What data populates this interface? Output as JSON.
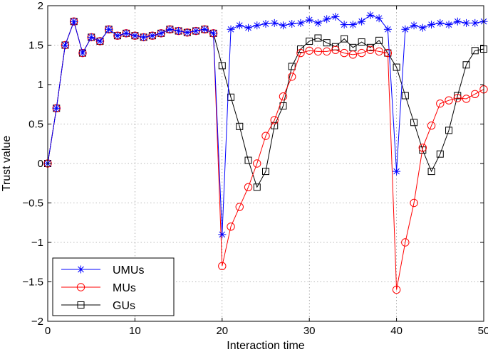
{
  "chart_data": {
    "type": "line",
    "title": "",
    "xlabel": "Interaction time",
    "ylabel": "Trust value",
    "xlim": [
      0,
      50
    ],
    "ylim": [
      -2,
      2
    ],
    "xticks": [
      0,
      10,
      20,
      30,
      40,
      50
    ],
    "yticks": [
      -2,
      -1.5,
      -1,
      -0.5,
      0,
      0.5,
      1,
      1.5,
      2
    ],
    "xtick_labels": [
      "0",
      "10",
      "20",
      "30",
      "40",
      "50"
    ],
    "ytick_labels": [
      "−2",
      "−1.5",
      "−1",
      "−0.5",
      "0",
      "0.5",
      "1",
      "1.5",
      "2"
    ],
    "grid": true,
    "legend_position": "bottom-left",
    "x": [
      0,
      1,
      2,
      3,
      4,
      5,
      6,
      7,
      8,
      9,
      10,
      11,
      12,
      13,
      14,
      15,
      16,
      17,
      18,
      19,
      20,
      21,
      22,
      23,
      24,
      25,
      26,
      27,
      28,
      29,
      30,
      31,
      32,
      33,
      34,
      35,
      36,
      37,
      38,
      39,
      40,
      41,
      42,
      43,
      44,
      45,
      46,
      47,
      48,
      49,
      50
    ],
    "series": [
      {
        "name": "UMUs",
        "color": "#0000ff",
        "marker": "star",
        "values": [
          0,
          0.7,
          1.5,
          1.8,
          1.4,
          1.6,
          1.55,
          1.7,
          1.62,
          1.65,
          1.62,
          1.6,
          1.62,
          1.65,
          1.7,
          1.68,
          1.66,
          1.68,
          1.7,
          1.65,
          -0.9,
          1.7,
          1.75,
          1.72,
          1.75,
          1.77,
          1.78,
          1.75,
          1.77,
          1.78,
          1.82,
          1.78,
          1.83,
          1.86,
          1.76,
          1.76,
          1.8,
          1.88,
          1.84,
          1.7,
          -0.1,
          1.7,
          1.75,
          1.72,
          1.76,
          1.78,
          1.76,
          1.8,
          1.78,
          1.78,
          1.8
        ]
      },
      {
        "name": "MUs",
        "color": "#ff0000",
        "marker": "circle",
        "values": [
          0,
          0.7,
          1.5,
          1.8,
          1.4,
          1.6,
          1.55,
          1.7,
          1.62,
          1.65,
          1.62,
          1.6,
          1.62,
          1.65,
          1.7,
          1.68,
          1.66,
          1.68,
          1.7,
          1.65,
          -1.3,
          -0.8,
          -0.55,
          -0.3,
          0,
          0.35,
          0.55,
          0.85,
          1.1,
          1.4,
          1.43,
          1.42,
          1.42,
          1.44,
          1.4,
          1.38,
          1.4,
          1.44,
          1.42,
          1.4,
          -1.6,
          -1.0,
          -0.5,
          0.2,
          0.48,
          0.76,
          0.8,
          0.83,
          0.82,
          0.88,
          0.94
        ]
      },
      {
        "name": "GUs",
        "color": "#000000",
        "marker": "square",
        "values": [
          0,
          0.7,
          1.5,
          1.8,
          1.4,
          1.6,
          1.55,
          1.7,
          1.62,
          1.65,
          1.62,
          1.6,
          1.62,
          1.65,
          1.7,
          1.68,
          1.66,
          1.68,
          1.7,
          1.65,
          1.24,
          0.84,
          0.47,
          0.04,
          -0.3,
          -0.1,
          0.48,
          0.73,
          1.23,
          1.45,
          1.55,
          1.59,
          1.53,
          1.48,
          1.58,
          1.47,
          1.54,
          1.47,
          1.56,
          1.4,
          1.22,
          0.86,
          0.52,
          0.17,
          -0.1,
          0.12,
          0.42,
          0.86,
          1.25,
          1.43,
          1.45
        ]
      }
    ]
  }
}
